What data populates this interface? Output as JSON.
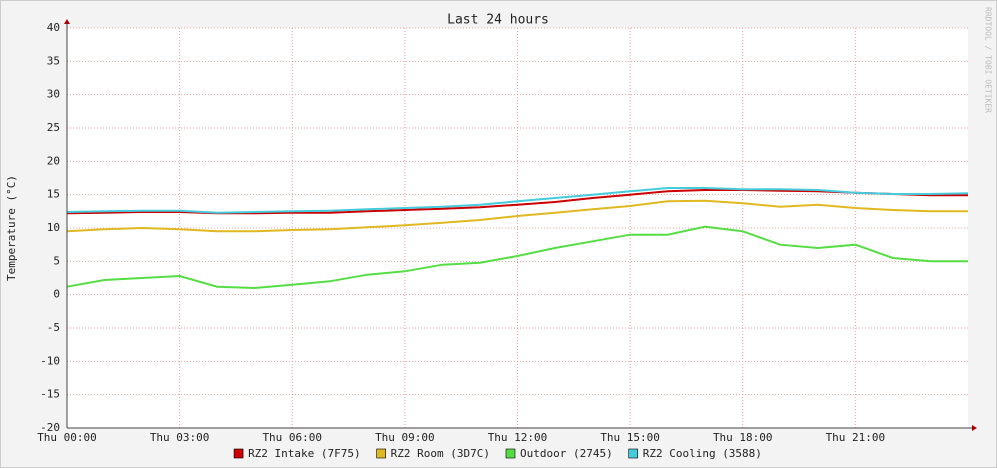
{
  "chart_data": {
    "type": "line",
    "title": "Last 24 hours",
    "y_label": "Temperature (°C)",
    "watermark": "RRDTOOL / TOBI OETIKER",
    "x": [
      0,
      1,
      2,
      3,
      4,
      5,
      6,
      7,
      8,
      9,
      10,
      11,
      12,
      13,
      14,
      15,
      16,
      17,
      18,
      19,
      20,
      21,
      22,
      23,
      24
    ],
    "xlim": [
      0,
      24
    ],
    "xticks": [
      {
        "value": 0,
        "label": "Thu 00:00"
      },
      {
        "value": 3,
        "label": "Thu 03:00"
      },
      {
        "value": 6,
        "label": "Thu 06:00"
      },
      {
        "value": 9,
        "label": "Thu 09:00"
      },
      {
        "value": 12,
        "label": "Thu 12:00"
      },
      {
        "value": 15,
        "label": "Thu 15:00"
      },
      {
        "value": 18,
        "label": "Thu 18:00"
      },
      {
        "value": 21,
        "label": "Thu 21:00"
      }
    ],
    "ylim": [
      -20,
      40
    ],
    "yticks": [
      -20,
      -15,
      -10,
      -5,
      0,
      5,
      10,
      15,
      20,
      25,
      30,
      35,
      40
    ],
    "grid": true,
    "series": [
      {
        "name": "RZ2 Intake (7F75)",
        "color": "#cc0000",
        "values": [
          12.2,
          12.3,
          12.4,
          12.4,
          12.2,
          12.2,
          12.3,
          12.3,
          12.5,
          12.7,
          12.9,
          13.1,
          13.5,
          13.9,
          14.5,
          15.0,
          15.5,
          15.7,
          15.7,
          15.6,
          15.5,
          15.3,
          15.1,
          14.9,
          14.9
        ]
      },
      {
        "name": "RZ2 Room (3D7C)",
        "color": "#e0b820",
        "values": [
          9.5,
          9.8,
          10.0,
          9.8,
          9.5,
          9.5,
          9.7,
          9.8,
          10.1,
          10.4,
          10.8,
          11.2,
          11.8,
          12.3,
          12.8,
          13.3,
          14.0,
          14.1,
          13.7,
          13.2,
          13.5,
          13.0,
          12.7,
          12.5,
          12.5
        ]
      },
      {
        "name": "Outdoor (2745)",
        "color": "#55dd44",
        "values": [
          1.2,
          2.2,
          2.5,
          2.8,
          1.2,
          1.0,
          1.5,
          2.0,
          3.0,
          3.5,
          4.5,
          4.8,
          5.8,
          7.0,
          8.0,
          9.0,
          9.0,
          10.2,
          9.5,
          7.5,
          7.0,
          7.5,
          5.5,
          5.0,
          5.0
        ]
      },
      {
        "name": "RZ2 Cooling (3588)",
        "color": "#44ccdd",
        "values": [
          12.4,
          12.5,
          12.6,
          12.6,
          12.3,
          12.4,
          12.5,
          12.6,
          12.8,
          13.0,
          13.2,
          13.5,
          14.0,
          14.5,
          15.0,
          15.5,
          16.0,
          16.0,
          15.8,
          15.8,
          15.7,
          15.3,
          15.1,
          15.1,
          15.2
        ]
      }
    ]
  }
}
